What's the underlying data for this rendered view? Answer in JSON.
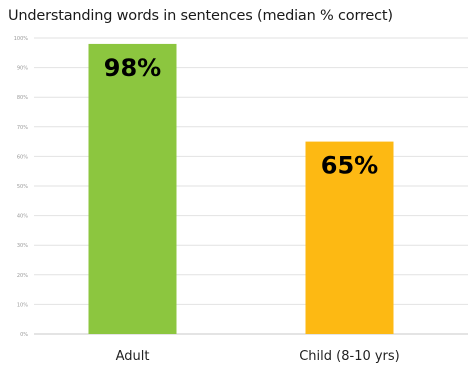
{
  "chart_data": {
    "type": "bar",
    "title": "Understanding words in sentences (median % correct)",
    "categories": [
      "Adult",
      "Child (8-10 yrs)"
    ],
    "values": [
      98,
      65
    ],
    "value_labels": [
      "98%",
      "65%"
    ],
    "bar_colors": [
      "#8cc63f",
      "#fdb913"
    ],
    "ylim": [
      0,
      100
    ],
    "yticks": [
      0,
      10,
      20,
      30,
      40,
      50,
      60,
      70,
      80,
      90,
      100
    ],
    "ytick_labels": [
      "0%",
      "10%",
      "20%",
      "30%",
      "40%",
      "50%",
      "60%",
      "70%",
      "80%",
      "90%",
      "100%"
    ],
    "grid": true,
    "legend": "none"
  }
}
